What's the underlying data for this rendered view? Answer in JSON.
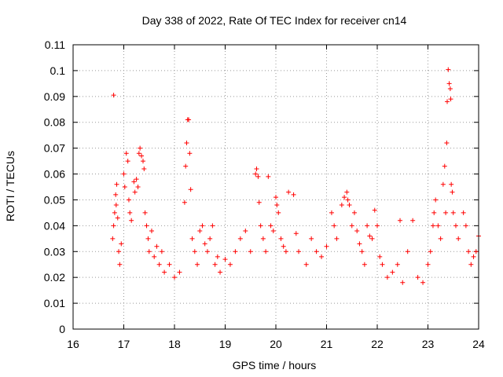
{
  "chart_data": {
    "type": "scatter",
    "title": "Day 338 of 2022, Rate Of TEC Index for receiver cn14",
    "xlabel": "GPS time / hours",
    "ylabel": "ROTI / TECUs",
    "xlim": [
      16,
      24
    ],
    "ylim": [
      0,
      0.11
    ],
    "xticks": [
      16,
      17,
      18,
      19,
      20,
      21,
      22,
      23,
      24
    ],
    "xtick_labels": [
      "16",
      "17",
      "18",
      "19",
      "20",
      "21",
      "22",
      "23",
      "24"
    ],
    "yticks": [
      0,
      0.01,
      0.02,
      0.03,
      0.04,
      0.05,
      0.06,
      0.07,
      0.08,
      0.09,
      0.1,
      0.11
    ],
    "ytick_labels": [
      "0",
      "0.01",
      "0.02",
      "0.03",
      "0.04",
      "0.05",
      "0.06",
      "0.07",
      "0.08",
      "0.09",
      "0.1",
      "0.11"
    ],
    "grid": true,
    "marker": "+",
    "color": "#ff0000",
    "series": [
      {
        "name": "cn14",
        "points": [
          [
            16.8,
            0.0905
          ],
          [
            16.82,
            0.045
          ],
          [
            16.84,
            0.052
          ],
          [
            16.86,
            0.056
          ],
          [
            16.78,
            0.035
          ],
          [
            16.8,
            0.04
          ],
          [
            16.85,
            0.048
          ],
          [
            16.88,
            0.043
          ],
          [
            16.9,
            0.03
          ],
          [
            16.92,
            0.025
          ],
          [
            16.95,
            0.033
          ],
          [
            17.0,
            0.06
          ],
          [
            17.02,
            0.055
          ],
          [
            17.05,
            0.068
          ],
          [
            17.08,
            0.065
          ],
          [
            17.1,
            0.05
          ],
          [
            17.12,
            0.045
          ],
          [
            17.15,
            0.042
          ],
          [
            17.2,
            0.057
          ],
          [
            17.22,
            0.053
          ],
          [
            17.25,
            0.058
          ],
          [
            17.28,
            0.055
          ],
          [
            17.3,
            0.068
          ],
          [
            17.32,
            0.07
          ],
          [
            17.35,
            0.067
          ],
          [
            17.38,
            0.065
          ],
          [
            17.4,
            0.062
          ],
          [
            17.42,
            0.045
          ],
          [
            17.45,
            0.04
          ],
          [
            17.48,
            0.035
          ],
          [
            17.5,
            0.03
          ],
          [
            17.55,
            0.038
          ],
          [
            17.6,
            0.028
          ],
          [
            17.65,
            0.032
          ],
          [
            17.7,
            0.025
          ],
          [
            17.75,
            0.03
          ],
          [
            17.8,
            0.022
          ],
          [
            17.9,
            0.025
          ],
          [
            18.0,
            0.02
          ],
          [
            18.1,
            0.022
          ],
          [
            18.2,
            0.049
          ],
          [
            18.22,
            0.063
          ],
          [
            18.24,
            0.072
          ],
          [
            18.26,
            0.081
          ],
          [
            18.28,
            0.081
          ],
          [
            18.3,
            0.068
          ],
          [
            18.32,
            0.054
          ],
          [
            18.35,
            0.035
          ],
          [
            18.4,
            0.03
          ],
          [
            18.45,
            0.025
          ],
          [
            18.5,
            0.038
          ],
          [
            18.55,
            0.04
          ],
          [
            18.6,
            0.033
          ],
          [
            18.65,
            0.03
          ],
          [
            18.7,
            0.035
          ],
          [
            18.75,
            0.04
          ],
          [
            18.8,
            0.025
          ],
          [
            18.85,
            0.028
          ],
          [
            18.9,
            0.022
          ],
          [
            19.0,
            0.027
          ],
          [
            19.1,
            0.025
          ],
          [
            19.2,
            0.03
          ],
          [
            19.3,
            0.035
          ],
          [
            19.4,
            0.038
          ],
          [
            19.5,
            0.03
          ],
          [
            19.6,
            0.06
          ],
          [
            19.62,
            0.062
          ],
          [
            19.65,
            0.059
          ],
          [
            19.67,
            0.049
          ],
          [
            19.7,
            0.04
          ],
          [
            19.75,
            0.035
          ],
          [
            19.8,
            0.03
          ],
          [
            19.85,
            0.059
          ],
          [
            19.9,
            0.04
          ],
          [
            19.95,
            0.038
          ],
          [
            20.0,
            0.051
          ],
          [
            20.02,
            0.048
          ],
          [
            20.05,
            0.045
          ],
          [
            20.1,
            0.035
          ],
          [
            20.15,
            0.032
          ],
          [
            20.2,
            0.03
          ],
          [
            20.25,
            0.053
          ],
          [
            20.35,
            0.052
          ],
          [
            20.4,
            0.037
          ],
          [
            20.45,
            0.03
          ],
          [
            20.6,
            0.025
          ],
          [
            20.7,
            0.035
          ],
          [
            20.8,
            0.03
          ],
          [
            20.9,
            0.028
          ],
          [
            21.0,
            0.032
          ],
          [
            21.1,
            0.045
          ],
          [
            21.15,
            0.04
          ],
          [
            21.2,
            0.035
          ],
          [
            21.3,
            0.048
          ],
          [
            21.35,
            0.051
          ],
          [
            21.4,
            0.053
          ],
          [
            21.42,
            0.05
          ],
          [
            21.45,
            0.048
          ],
          [
            21.5,
            0.04
          ],
          [
            21.55,
            0.045
          ],
          [
            21.6,
            0.038
          ],
          [
            21.65,
            0.033
          ],
          [
            21.7,
            0.03
          ],
          [
            21.75,
            0.025
          ],
          [
            21.8,
            0.04
          ],
          [
            21.85,
            0.036
          ],
          [
            21.9,
            0.035
          ],
          [
            21.95,
            0.046
          ],
          [
            22.0,
            0.04
          ],
          [
            22.05,
            0.028
          ],
          [
            22.1,
            0.025
          ],
          [
            22.2,
            0.02
          ],
          [
            22.3,
            0.022
          ],
          [
            22.4,
            0.025
          ],
          [
            22.45,
            0.042
          ],
          [
            22.5,
            0.018
          ],
          [
            22.6,
            0.03
          ],
          [
            22.7,
            0.042
          ],
          [
            22.8,
            0.02
          ],
          [
            22.9,
            0.018
          ],
          [
            23.0,
            0.025
          ],
          [
            23.05,
            0.03
          ],
          [
            23.1,
            0.04
          ],
          [
            23.12,
            0.045
          ],
          [
            23.15,
            0.05
          ],
          [
            23.2,
            0.04
          ],
          [
            23.25,
            0.035
          ],
          [
            23.3,
            0.056
          ],
          [
            23.33,
            0.063
          ],
          [
            23.35,
            0.045
          ],
          [
            23.37,
            0.072
          ],
          [
            23.38,
            0.088
          ],
          [
            23.4,
            0.1004
          ],
          [
            23.42,
            0.095
          ],
          [
            23.44,
            0.093
          ],
          [
            23.45,
            0.089
          ],
          [
            23.46,
            0.056
          ],
          [
            23.48,
            0.053
          ],
          [
            23.5,
            0.045
          ],
          [
            23.55,
            0.04
          ],
          [
            23.6,
            0.035
          ],
          [
            23.7,
            0.045
          ],
          [
            23.75,
            0.04
          ],
          [
            23.8,
            0.03
          ],
          [
            23.85,
            0.025
          ],
          [
            23.9,
            0.028
          ],
          [
            23.95,
            0.03
          ],
          [
            24.0,
            0.036
          ]
        ]
      }
    ]
  }
}
